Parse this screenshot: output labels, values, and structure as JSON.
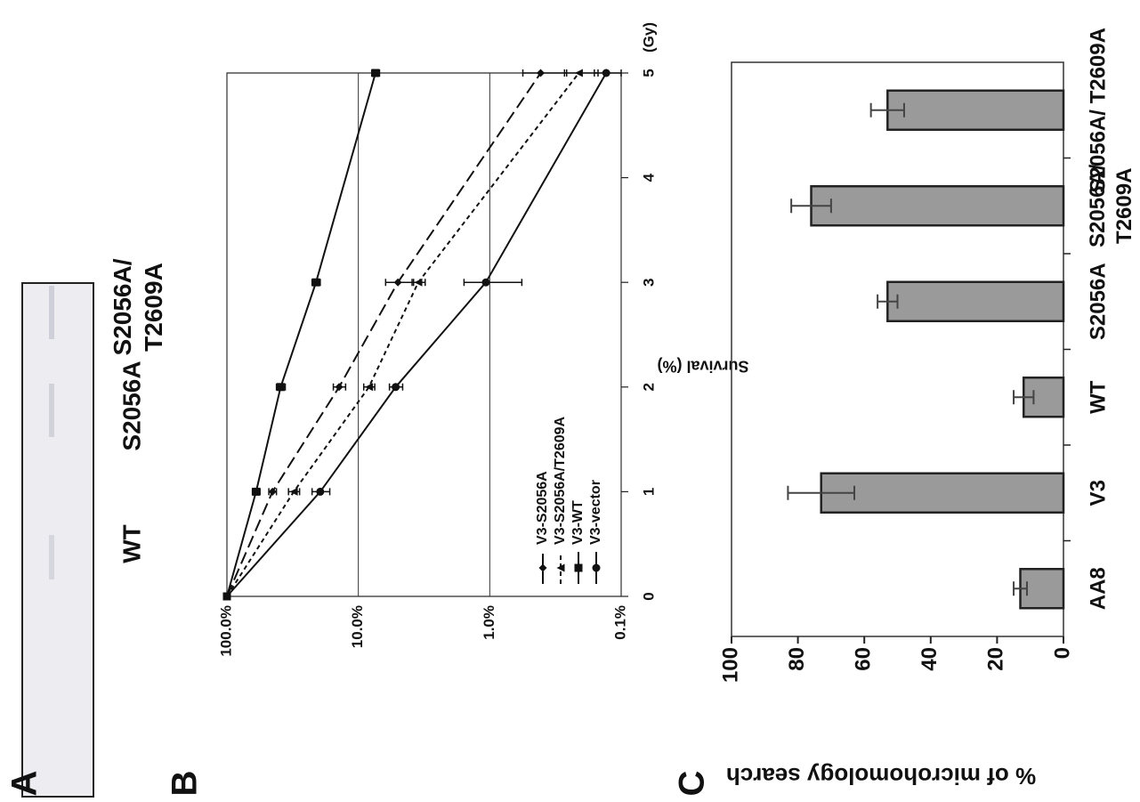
{
  "panel_labels": [
    "A",
    "B",
    "C"
  ],
  "gel": {
    "lanes": [
      "WT",
      "S2056A",
      "S2056A/\nT2609A"
    ]
  },
  "chart_data": [
    {
      "type": "line",
      "x": [
        0,
        1,
        2,
        3,
        5
      ],
      "xlim": [
        0,
        5
      ],
      "xticks": [
        0,
        1,
        2,
        3,
        4,
        5
      ],
      "xlabel": "(Gy)",
      "ylabel": "Survival (%)",
      "log_y": true,
      "ylim": [
        0.1,
        100
      ],
      "yticks": [
        {
          "value": 100,
          "label": "100.0%"
        },
        {
          "value": 10,
          "label": "10.0%"
        },
        {
          "value": 1,
          "label": "1.0%"
        },
        {
          "value": 0.1,
          "label": "0.1%"
        }
      ],
      "grid": true,
      "legend": "lower left",
      "series": [
        {
          "name": "V3-S2056A",
          "color": "#111111",
          "marker": "diamond",
          "linestyle": "dashed",
          "values": [
            100,
            45,
            14,
            5,
            0.41
          ],
          "errors": [
            null,
            3,
            1.5,
            1.2,
            0.15
          ]
        },
        {
          "name": "V3-S2056A/T2609A",
          "color": "#111111",
          "marker": "triangle",
          "linestyle": "dotted",
          "values": [
            100,
            31,
            8.3,
            3.5,
            0.21
          ],
          "errors": [
            null,
            3,
            0.8,
            0.4,
            0.06
          ]
        },
        {
          "name": "V3-WT",
          "color": "#111111",
          "marker": "square",
          "linestyle": "solid",
          "values": [
            100,
            60,
            39,
            21,
            7.4
          ],
          "errors": [
            null,
            4,
            3,
            1.5,
            0.5
          ]
        },
        {
          "name": "V3-vector",
          "color": "#111111",
          "marker": "circle",
          "linestyle": "solid",
          "values": [
            100,
            19.5,
            5.2,
            1.07,
            0.13
          ],
          "errors": [
            null,
            3,
            0.6,
            0.5,
            0.03
          ]
        }
      ]
    },
    {
      "type": "bar",
      "categories": [
        "AA8",
        "V3",
        "WT",
        "S2056A",
        "S2056A/\nT2609A",
        "S2056A/ T2609A"
      ],
      "values": [
        13,
        73,
        12,
        53,
        76,
        53
      ],
      "errors": [
        2,
        10,
        3,
        3,
        6,
        5
      ],
      "ylim": [
        0,
        100
      ],
      "yticks": [
        0,
        20,
        40,
        60,
        80,
        100
      ],
      "ylabel": "% of microhomology search",
      "color": "#9a9a9a"
    }
  ]
}
